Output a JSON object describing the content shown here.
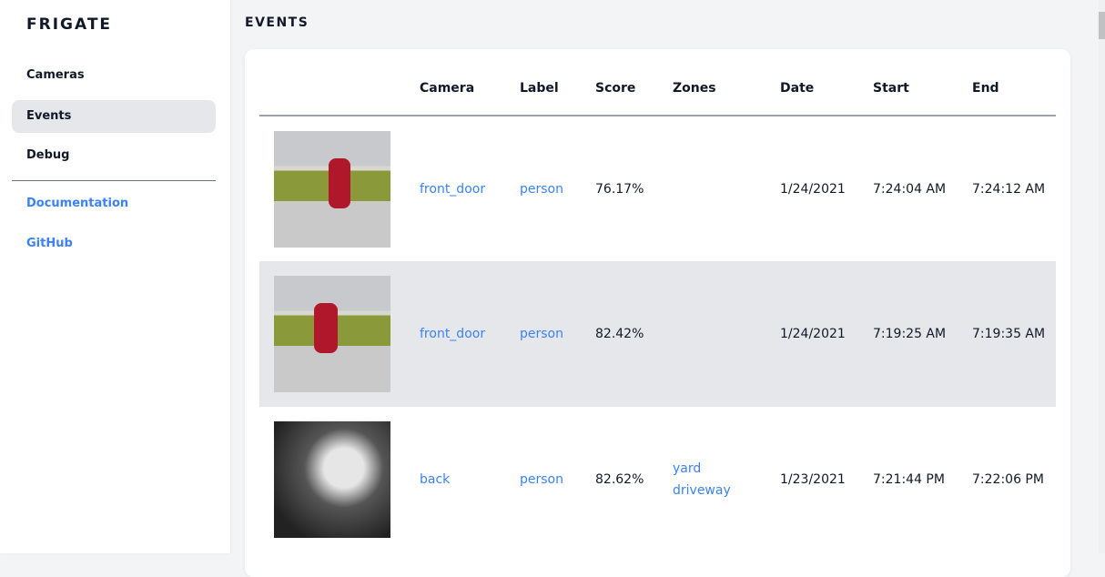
{
  "sidebar": {
    "logo": "FRIGATE",
    "items": [
      {
        "label": "Cameras"
      },
      {
        "label": "Events"
      },
      {
        "label": "Debug"
      }
    ],
    "links": [
      {
        "label": "Documentation"
      },
      {
        "label": "GitHub"
      }
    ]
  },
  "page": {
    "title": "EVENTS"
  },
  "table": {
    "headers": [
      "",
      "Camera",
      "Label",
      "Score",
      "Zones",
      "Date",
      "Start",
      "End"
    ],
    "rows": [
      {
        "camera": "front_door",
        "label": "person",
        "score": "76.17%",
        "zones": [
          "",
          ""
        ],
        "date": "1/24/2021",
        "start": "7:24:04 AM",
        "end": "7:24:12 AM"
      },
      {
        "camera": "front_door",
        "label": "person",
        "score": "82.42%",
        "zones": [
          "",
          ""
        ],
        "date": "1/24/2021",
        "start": "7:19:25 AM",
        "end": "7:19:35 AM"
      },
      {
        "camera": "back",
        "label": "person",
        "score": "82.62%",
        "zones": [
          "yard",
          "driveway"
        ],
        "date": "1/23/2021",
        "start": "7:21:44 PM",
        "end": "7:22:06 PM"
      }
    ]
  },
  "colors": {
    "accent": "#3b82f6",
    "active_bg": "#e5e7eb"
  }
}
